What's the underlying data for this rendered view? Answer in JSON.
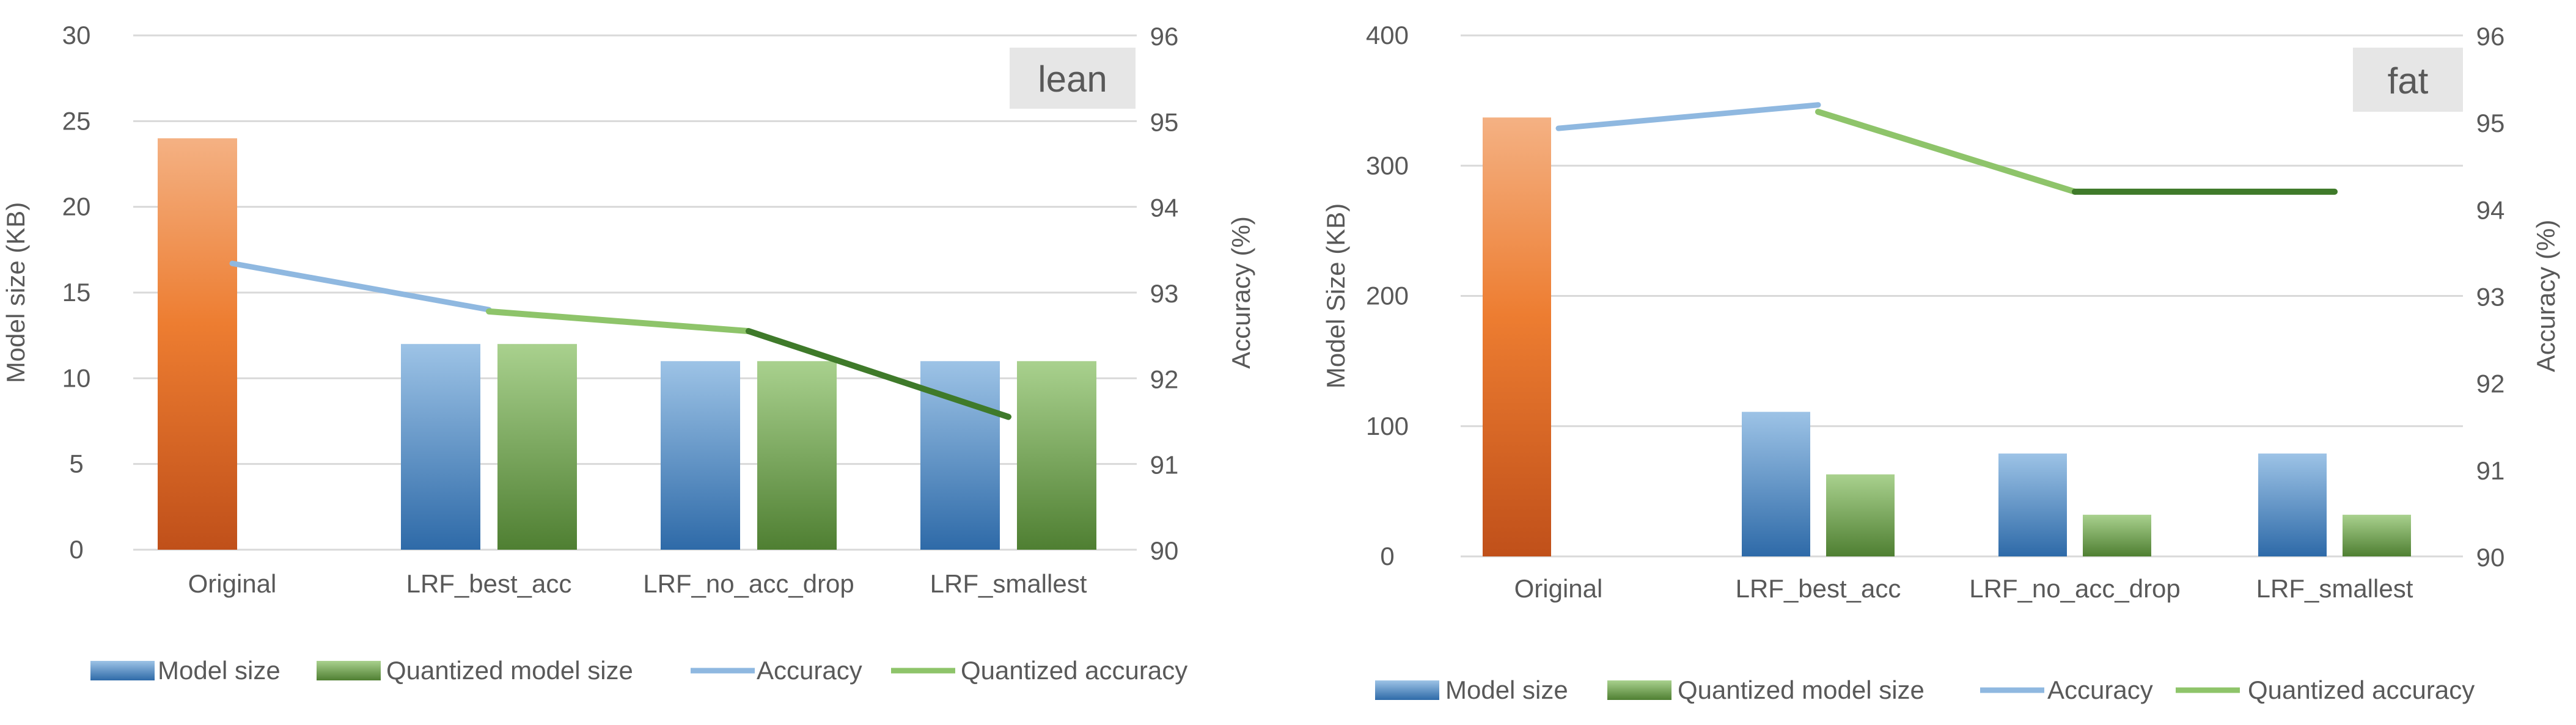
{
  "chart_data": [
    {
      "type": "bar",
      "title": "lean",
      "categories": [
        "Original",
        "LRF_best_acc",
        "LRF_no_acc_drop",
        "LRF_smallest"
      ],
      "ylabel": "Model size (KB)",
      "y2label": "Accuracy (%)",
      "ylim": [
        0,
        30
      ],
      "yticks": [
        0,
        5,
        10,
        15,
        20,
        25,
        30
      ],
      "y2lim": [
        90,
        96
      ],
      "y2ticks": [
        90,
        91,
        92,
        93,
        94,
        95,
        96
      ],
      "grid": true,
      "legend_position": "bottom",
      "series": [
        {
          "name": "Model size",
          "kind": "bar",
          "values": [
            24,
            12,
            11,
            11
          ]
        },
        {
          "name": "Quantized model size",
          "kind": "bar",
          "values": [
            null,
            12,
            11,
            11
          ]
        },
        {
          "name": "Accuracy",
          "kind": "line",
          "axis": "right",
          "values": [
            93.34,
            92.8,
            null,
            null
          ]
        },
        {
          "name": "Quantized accuracy",
          "kind": "line",
          "axis": "right",
          "values": [
            null,
            92.78,
            92.55,
            91.55
          ]
        }
      ]
    },
    {
      "type": "bar",
      "title": "fat",
      "categories": [
        "Original",
        "LRF_best_acc",
        "LRF_no_acc_drop",
        "LRF_smallest"
      ],
      "ylabel": "Model Size (KB)",
      "y2label": "Accuracy (%)",
      "ylim": [
        0,
        400
      ],
      "yticks": [
        0,
        100,
        200,
        300,
        400
      ],
      "y2lim": [
        90,
        96
      ],
      "y2ticks": [
        90,
        91,
        92,
        93,
        94,
        95,
        96
      ],
      "grid": true,
      "legend_position": "bottom",
      "series": [
        {
          "name": "Model size",
          "kind": "bar",
          "values": [
            337,
            111,
            79,
            79
          ]
        },
        {
          "name": "Quantized model size",
          "kind": "bar",
          "values": [
            null,
            63,
            32,
            32
          ]
        },
        {
          "name": "Accuracy",
          "kind": "line",
          "axis": "right",
          "values": [
            94.93,
            95.2,
            null,
            null
          ]
        },
        {
          "name": "Quantized accuracy",
          "kind": "line",
          "axis": "right",
          "values": [
            null,
            95.12,
            94.2,
            94.2
          ]
        }
      ]
    }
  ],
  "colors": {
    "original_top": "#f4b183",
    "original_mid": "#ed7d31",
    "original_bottom": "#c0501a",
    "model_top": "#9dc3e6",
    "model_bottom": "#2e6aa8",
    "quant_top": "#a9d18e",
    "quant_bottom": "#4f7f32",
    "accuracy_line": "#8fb8e0",
    "quant_line_light": "#8ec46a",
    "quant_line_dark": "#3f7a2a",
    "grid": "#d9d9d9",
    "title_box": "#e6e6e6"
  }
}
